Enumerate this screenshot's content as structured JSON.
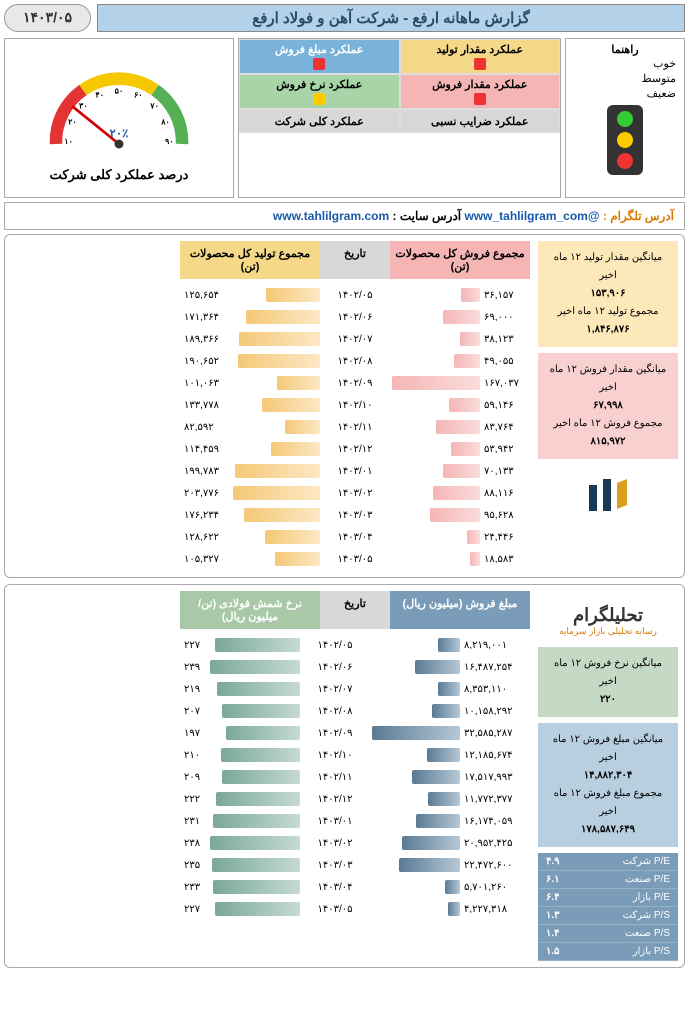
{
  "header": {
    "date": "۱۴۰۳/۰۵",
    "title": "گزارش ماهانه ارفع - شرکت آهن و فولاد ارفع"
  },
  "gauge": {
    "label": "درصد عملکرد کلی شرکت",
    "value_label": "۲۰٪",
    "ticks": [
      "۱۰",
      "۲۰",
      "۳۰",
      "۴۰",
      "۵۰",
      "۶۰",
      "۷۰",
      "۸۰",
      "۹۰"
    ],
    "needle_angle": -125,
    "colors": {
      "red": "#e33333",
      "yellow": "#f5c800",
      "green": "#55b055"
    }
  },
  "perf_grid": {
    "legend_title": "راهنما",
    "legend": [
      {
        "label": "خوب",
        "color": "green"
      },
      {
        "label": "متوسط",
        "color": "yellow"
      },
      {
        "label": "ضعیف",
        "color": "red"
      }
    ],
    "cells": [
      {
        "label": "عملکرد مقدار تولید",
        "class": "perf-header-yellow",
        "indicator": "sq-red"
      },
      {
        "label": "عملکرد مبلغ فروش",
        "class": "perf-header-blue",
        "indicator": "sq-red"
      },
      {
        "label": "عملکرد مقدار فروش",
        "class": "perf-header-pink",
        "indicator": "sq-red"
      },
      {
        "label": "عملکرد نرخ فروش",
        "class": "perf-header-green",
        "indicator": "sq-yellow"
      },
      {
        "label": "عملکرد ضرایب نسبی",
        "class": "perf-header-gray",
        "indicator": ""
      },
      {
        "label": "عملکرد کلی شرکت",
        "class": "perf-header-gray",
        "indicator": ""
      }
    ]
  },
  "links": {
    "telegram_label": "آدرس تلگرام :",
    "telegram": "www_tahlilgram_com@",
    "site_label": "آدرس سایت :",
    "site": "www.tahlilgram.com"
  },
  "section1": {
    "headers": {
      "production": "مجموع تولید کل محصولات (تن)",
      "date": "تاریخ",
      "sales": "مجموع فروش کل محصولات (تن)"
    },
    "max_prod": 210000,
    "max_sale": 170000,
    "rows": [
      {
        "prod": "۱۲۵,۶۵۴",
        "prod_w": 60,
        "date": "۱۴۰۲/۰۵",
        "sale": "۳۶,۱۵۷",
        "sale_w": 21
      },
      {
        "prod": "۱۷۱,۳۶۴",
        "prod_w": 82,
        "date": "۱۴۰۲/۰۶",
        "sale": "۶۹,۰۰۰",
        "sale_w": 41
      },
      {
        "prod": "۱۸۹,۳۶۶",
        "prod_w": 90,
        "date": "۱۴۰۲/۰۷",
        "sale": "۳۸,۱۲۳",
        "sale_w": 22
      },
      {
        "prod": "۱۹۰,۶۵۲",
        "prod_w": 91,
        "date": "۱۴۰۲/۰۸",
        "sale": "۴۹,۰۵۵",
        "sale_w": 29
      },
      {
        "prod": "۱۰۱,۰۶۳",
        "prod_w": 48,
        "date": "۱۴۰۲/۰۹",
        "sale": "۱۶۷,۰۳۷",
        "sale_w": 98
      },
      {
        "prod": "۱۳۳,۷۷۸",
        "prod_w": 64,
        "date": "۱۴۰۲/۱۰",
        "sale": "۵۹,۱۴۶",
        "sale_w": 35
      },
      {
        "prod": "۸۲,۵۹۲",
        "prod_w": 39,
        "date": "۱۴۰۲/۱۱",
        "sale": "۸۳,۷۶۴",
        "sale_w": 49
      },
      {
        "prod": "۱۱۴,۴۵۹",
        "prod_w": 55,
        "date": "۱۴۰۲/۱۲",
        "sale": "۵۳,۹۴۲",
        "sale_w": 32
      },
      {
        "prod": "۱۹۹,۷۸۳",
        "prod_w": 95,
        "date": "۱۴۰۳/۰۱",
        "sale": "۷۰,۱۳۳",
        "sale_w": 41
      },
      {
        "prod": "۲۰۳,۷۷۶",
        "prod_w": 97,
        "date": "۱۴۰۳/۰۲",
        "sale": "۸۸,۱۱۶",
        "sale_w": 52
      },
      {
        "prod": "۱۷۶,۲۳۴",
        "prod_w": 84,
        "date": "۱۴۰۳/۰۳",
        "sale": "۹۵,۶۲۸",
        "sale_w": 56
      },
      {
        "prod": "۱۲۸,۶۲۲",
        "prod_w": 61,
        "date": "۱۴۰۳/۰۴",
        "sale": "۲۴,۴۴۶",
        "sale_w": 14
      },
      {
        "prod": "۱۰۵,۳۲۷",
        "prod_w": 50,
        "date": "۱۴۰۳/۰۵",
        "sale": "۱۸,۵۸۳",
        "sale_w": 11
      }
    ],
    "info_prod": {
      "l1": "میانگین مقدار تولید ۱۲ ماه اخیر",
      "v1": "۱۵۳,۹۰۶",
      "l2": "مجموع تولید ۱۲ ماه اخیر",
      "v2": "۱,۸۴۶,۸۷۶"
    },
    "info_sale": {
      "l1": "میانگین مقدار فروش ۱۲ ماه اخیر",
      "v1": "۶۷,۹۹۸",
      "l2": "مجموع فروش ۱۲ ماه اخیر",
      "v2": "۸۱۵,۹۷۲"
    }
  },
  "section2": {
    "headers": {
      "rate": "نرخ شمش فولادی (تن/میلیون ریال)",
      "date": "تاریخ",
      "amount": "مبلغ فروش (میلیون ریال)"
    },
    "rows": [
      {
        "rate": "۲۲۷",
        "rate_w": 95,
        "date": "۱۴۰۲/۰۵",
        "amount": "۸,۲۱۹,۰۰۱",
        "amount_w": 25
      },
      {
        "rate": "۲۳۹",
        "rate_w": 100,
        "date": "۱۴۰۲/۰۶",
        "amount": "۱۶,۴۸۷,۲۵۴",
        "amount_w": 50
      },
      {
        "rate": "۲۱۹",
        "rate_w": 92,
        "date": "۱۴۰۲/۰۷",
        "amount": "۸,۳۵۳,۱۱۰",
        "amount_w": 25
      },
      {
        "rate": "۲۰۷",
        "rate_w": 87,
        "date": "۱۴۰۲/۰۸",
        "amount": "۱۰,۱۵۸,۲۹۲",
        "amount_w": 31
      },
      {
        "rate": "۱۹۷",
        "rate_w": 82,
        "date": "۱۴۰۲/۰۹",
        "amount": "۳۲,۵۸۵,۲۸۷",
        "amount_w": 98
      },
      {
        "rate": "۲۱۰",
        "rate_w": 88,
        "date": "۱۴۰۲/۱۰",
        "amount": "۱۲,۱۸۵,۶۷۴",
        "amount_w": 37
      },
      {
        "rate": "۲۰۹",
        "rate_w": 87,
        "date": "۱۴۰۲/۱۱",
        "amount": "۱۷,۵۱۷,۹۹۳",
        "amount_w": 53
      },
      {
        "rate": "۲۲۲",
        "rate_w": 93,
        "date": "۱۴۰۲/۱۲",
        "amount": "۱۱,۷۷۲,۳۷۷",
        "amount_w": 36
      },
      {
        "rate": "۲۳۱",
        "rate_w": 97,
        "date": "۱۴۰۳/۰۱",
        "amount": "۱۶,۱۷۴,۰۵۹",
        "amount_w": 49
      },
      {
        "rate": "۲۳۸",
        "rate_w": 100,
        "date": "۱۴۰۳/۰۲",
        "amount": "۲۰,۹۵۲,۴۲۵",
        "amount_w": 64
      },
      {
        "rate": "۲۳۵",
        "rate_w": 98,
        "date": "۱۴۰۳/۰۳",
        "amount": "۲۲,۴۷۲,۶۰۰",
        "amount_w": 68
      },
      {
        "rate": "۲۳۳",
        "rate_w": 97,
        "date": "۱۴۰۳/۰۴",
        "amount": "۵,۷۰۱,۲۶۰",
        "amount_w": 17
      },
      {
        "rate": "۲۲۷",
        "rate_w": 95,
        "date": "۱۴۰۳/۰۵",
        "amount": "۴,۲۲۷,۳۱۸",
        "amount_w": 13
      }
    ],
    "info_rate": {
      "l1": "میانگین نرخ فروش ۱۲ ماه اخیر",
      "v1": "۲۲۰"
    },
    "info_amount": {
      "l1": "میانگین مبلغ فروش ۱۲ ماه اخیر",
      "v1": "۱۴,۸۸۲,۳۰۴",
      "l2": "مجموع مبلغ فروش ۱۲ ماه اخیر",
      "v2": "۱۷۸,۵۸۷,۶۴۹"
    },
    "ratios": [
      {
        "label": "P/E شرکت",
        "value": "۴.۹"
      },
      {
        "label": "P/E صنعت",
        "value": "۶.۱"
      },
      {
        "label": "P/E بازار",
        "value": "۶.۴"
      },
      {
        "label": "P/S شرکت",
        "value": "۱.۳"
      },
      {
        "label": "P/S صنعت",
        "value": "۱.۴"
      },
      {
        "label": "P/S بازار",
        "value": "۱.۵"
      }
    ]
  },
  "logo": {
    "brand": "تحلیلگرام",
    "tagline": "رسانه تحلیلی بازار سرمایه"
  }
}
